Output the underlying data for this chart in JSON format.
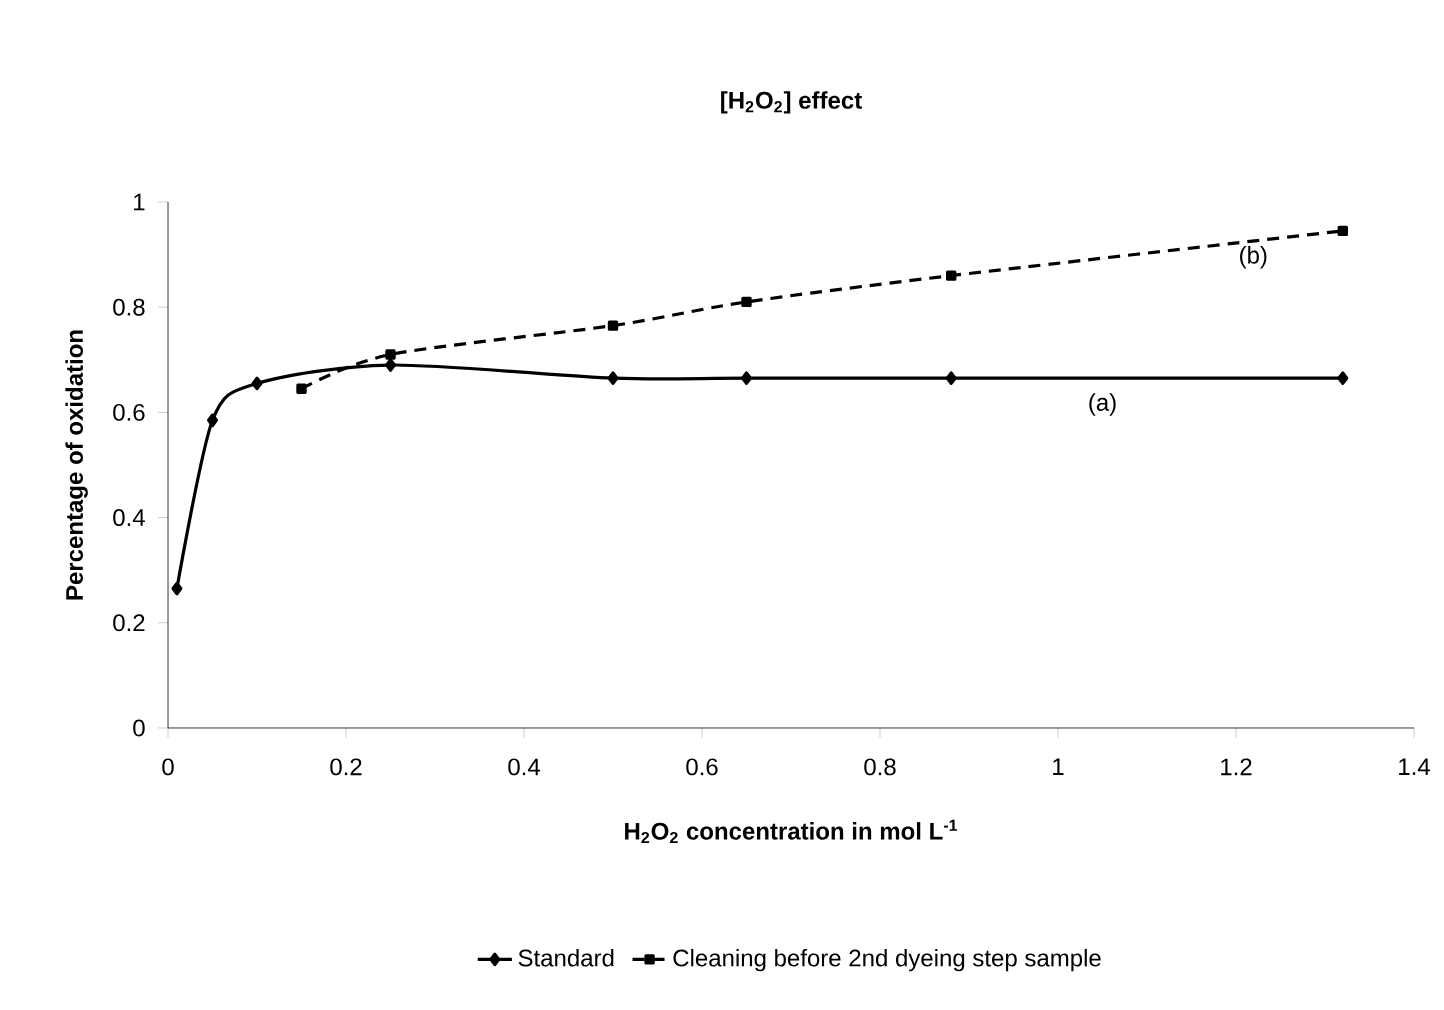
{
  "chart_data": {
    "type": "line",
    "title": "[H$_{2}$O$_{2}$] effect",
    "xlabel": "H$_{2}$O$_{2}$ concentration in mol L$^{-1}$",
    "ylabel": "Percentage of oxidation",
    "xlim": [
      0,
      1.4
    ],
    "xticks": [
      0,
      0.2,
      0.4,
      0.6,
      0.8,
      1,
      1.2,
      1.4
    ],
    "ylim": [
      0,
      1
    ],
    "yticks": [
      0,
      0.2,
      0.4,
      0.6,
      0.8,
      1
    ],
    "grid": false,
    "legend": "bottom",
    "series": [
      {
        "name": "Standard",
        "color": "#000000",
        "marker": "diamond",
        "line_style": "solid",
        "x": [
          0.01,
          0.05,
          0.1,
          0.25,
          0.5,
          0.65,
          0.88,
          1.32
        ],
        "values": [
          0.265,
          0.585,
          0.655,
          0.69,
          0.665,
          0.665,
          0.665,
          0.665
        ]
      },
      {
        "name": "Cleaning before 2nd dyeing step sample",
        "color": "#000000",
        "marker": "square",
        "line_style": "dashed",
        "x": [
          0.15,
          0.25,
          0.5,
          0.65,
          0.88,
          1.32
        ],
        "values": [
          0.645,
          0.71,
          0.765,
          0.81,
          0.86,
          0.945
        ]
      }
    ],
    "annotations": [
      "(a)",
      "(b)"
    ]
  }
}
